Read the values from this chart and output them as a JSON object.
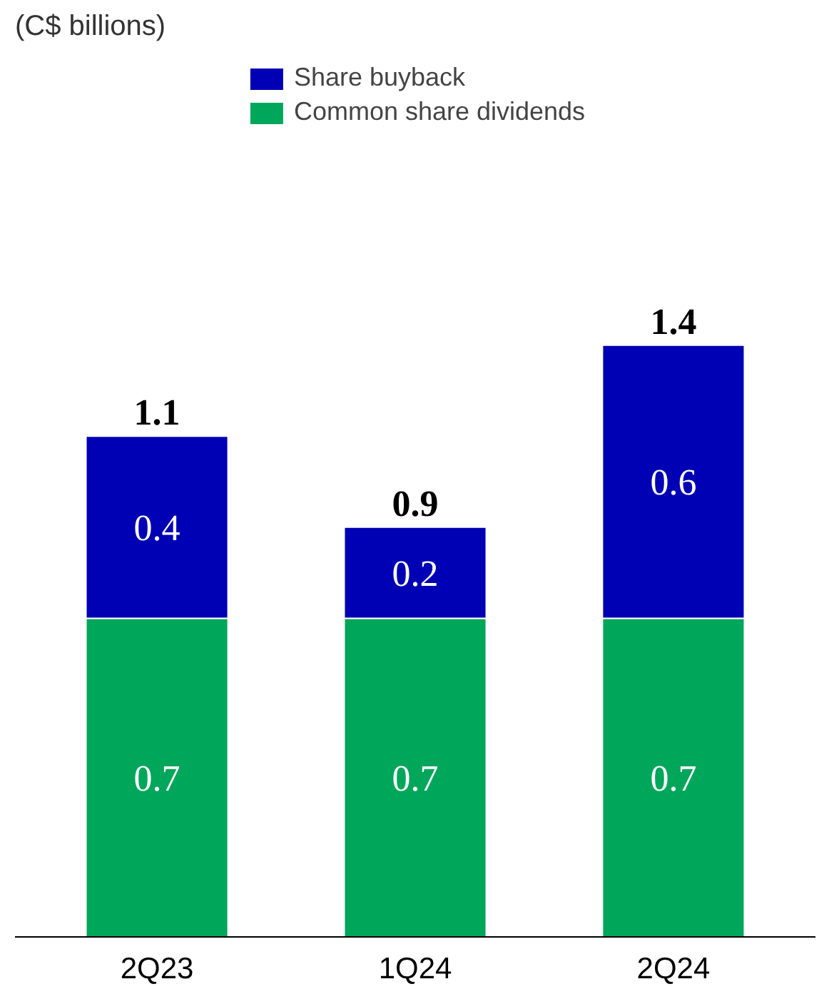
{
  "chart_data": {
    "type": "bar",
    "stacked": true,
    "subtitle": "(C$ billions)",
    "categories": [
      "2Q23",
      "1Q24",
      "2Q24"
    ],
    "series": [
      {
        "name": "Common share dividends",
        "color": "#00a65a",
        "values": [
          0.7,
          0.7,
          0.7
        ]
      },
      {
        "name": "Share buyback",
        "color": "#0000b4",
        "values": [
          0.4,
          0.2,
          0.6
        ]
      }
    ],
    "data_labels": true,
    "totals": [
      "1.1",
      "0.9",
      "1.4"
    ],
    "legend": "top",
    "grid": false
  }
}
